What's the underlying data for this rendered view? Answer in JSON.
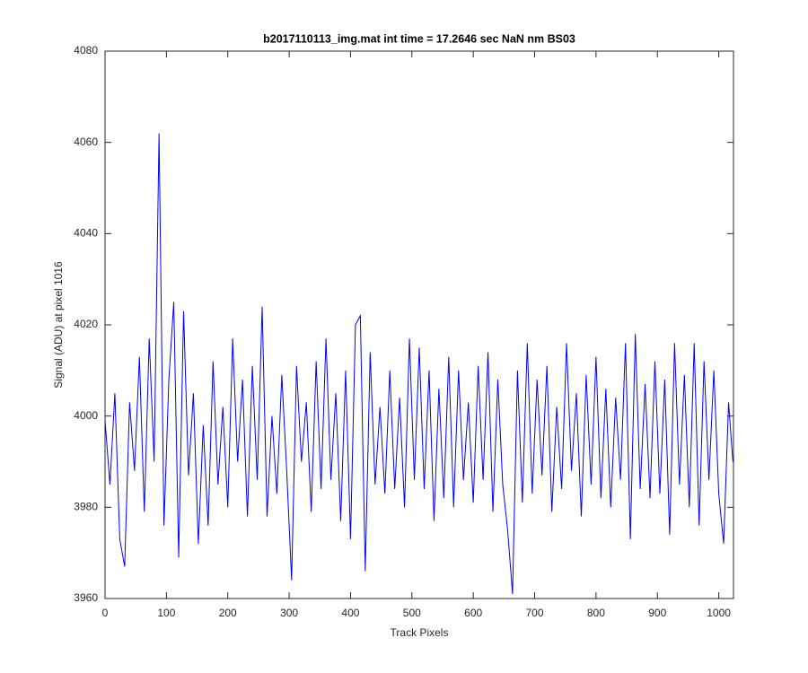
{
  "chart_data": {
    "type": "line",
    "title": "b2017110113_img.mat int time = 17.2646 sec  NaN nm BS03",
    "xlabel": "Track Pixels",
    "ylabel": "Signal (ADU) at pixel 1016",
    "xlim": [
      0,
      1024
    ],
    "ylim": [
      3960,
      4080
    ],
    "xticks": [
      0,
      100,
      200,
      300,
      400,
      500,
      600,
      700,
      800,
      900,
      1000
    ],
    "yticks": [
      3960,
      3980,
      4000,
      4020,
      4040,
      4060,
      4080
    ],
    "x": [
      0,
      8,
      16,
      24,
      32,
      40,
      48,
      56,
      64,
      72,
      80,
      88,
      96,
      104,
      112,
      120,
      128,
      136,
      144,
      152,
      160,
      168,
      176,
      184,
      192,
      200,
      208,
      216,
      224,
      232,
      240,
      248,
      256,
      264,
      272,
      280,
      288,
      296,
      304,
      312,
      320,
      328,
      336,
      344,
      352,
      360,
      368,
      376,
      384,
      392,
      400,
      408,
      416,
      424,
      432,
      440,
      448,
      456,
      464,
      472,
      480,
      488,
      496,
      504,
      512,
      520,
      528,
      536,
      544,
      552,
      560,
      568,
      576,
      584,
      592,
      600,
      608,
      616,
      624,
      632,
      640,
      648,
      656,
      664,
      672,
      680,
      688,
      696,
      704,
      712,
      720,
      728,
      736,
      744,
      752,
      760,
      768,
      776,
      784,
      792,
      800,
      808,
      816,
      824,
      832,
      840,
      848,
      856,
      864,
      872,
      880,
      888,
      896,
      904,
      912,
      920,
      928,
      936,
      944,
      952,
      960,
      968,
      976,
      984,
      992,
      1000,
      1008,
      1016,
      1023
    ],
    "series": [
      {
        "color": "#0000ff",
        "values": [
          3999,
          3985,
          4005,
          3973,
          3967,
          4003,
          3988,
          4013,
          3979,
          4017,
          3990,
          4062,
          3976,
          4008,
          4025,
          3969,
          4023,
          3987,
          4005,
          3972,
          3998,
          3976,
          4012,
          3985,
          4002,
          3980,
          4017,
          3990,
          4008,
          3978,
          4011,
          3986,
          4024,
          3978,
          4000,
          3983,
          4009,
          3988,
          3964,
          4011,
          3990,
          4003,
          3979,
          4012,
          3984,
          4017,
          3986,
          4005,
          3977,
          4010,
          3973,
          4020,
          4022,
          3966,
          4014,
          3985,
          4002,
          3983,
          4010,
          3984,
          4004,
          3980,
          4017,
          3986,
          4015,
          3984,
          4010,
          3977,
          4006,
          3982,
          4013,
          3980,
          4010,
          3986,
          4003,
          3981,
          4011,
          3986,
          4014,
          3979,
          4008,
          3985,
          3975,
          3961,
          4010,
          3981,
          4016,
          3983,
          4008,
          3987,
          4011,
          3979,
          4002,
          3984,
          4016,
          3988,
          4005,
          3978,
          4009,
          3985,
          4013,
          3982,
          4006,
          3980,
          4004,
          3986,
          4016,
          3973,
          4018,
          3984,
          4007,
          3982,
          4012,
          3983,
          4008,
          3974,
          4016,
          3985,
          4009,
          3980,
          4016,
          3976,
          4012,
          3986,
          4010,
          3983,
          3972,
          4003,
          3990
        ]
      }
    ]
  }
}
